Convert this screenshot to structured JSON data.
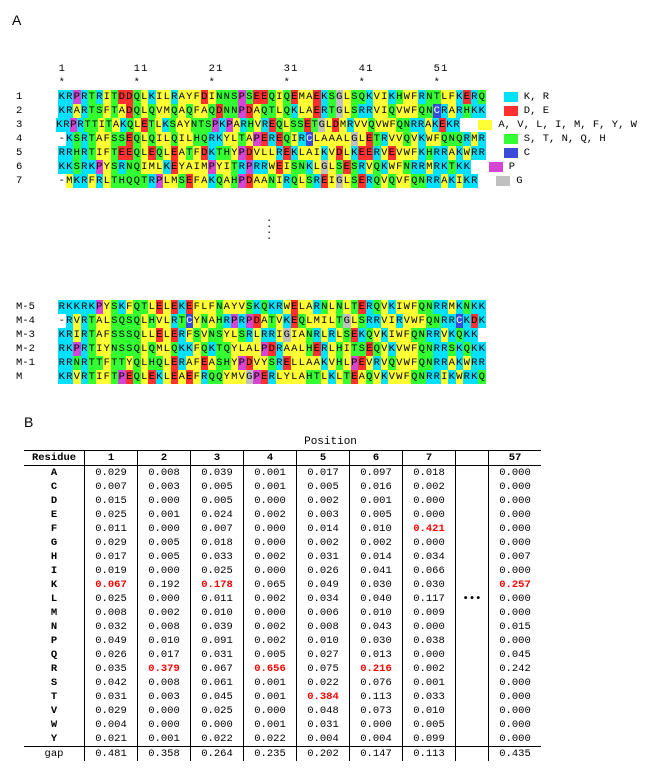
{
  "panelA": {
    "label": "A",
    "ruler_positions": [
      1,
      11,
      21,
      31,
      41,
      51
    ],
    "ruler_marker": "*",
    "color_map": {
      "K": "#00e0ff",
      "R": "#00e0ff",
      "D": "#ff3030",
      "E": "#ff3030",
      "A": "#ffff33",
      "V": "#ffff33",
      "L": "#ffff33",
      "I": "#ffff33",
      "M": "#ffff33",
      "F": "#ffff33",
      "Y": "#ffff33",
      "W": "#ffff33",
      "S": "#33ff33",
      "T": "#33ff33",
      "N": "#33ff33",
      "Q": "#33ff33",
      "H": "#33ff33",
      "C": "#3a4bd8",
      "P": "#d346d3",
      "G": "#c0c0c0",
      "-": "transparent"
    },
    "legend": [
      {
        "color": "#00e0ff",
        "label": "K, R"
      },
      {
        "color": "#ff3030",
        "label": "D, E"
      },
      {
        "color": "#ffff33",
        "label": "A, V, L, I, M, F, Y, W"
      },
      {
        "color": "#33ff33",
        "label": "S, T, N, Q, H"
      },
      {
        "color": "#3a4bd8",
        "label": "C"
      },
      {
        "color": "#d346d3",
        "label": "P"
      },
      {
        "color": "#c0c0c0",
        "label": "G"
      }
    ],
    "block1": {
      "labels": [
        "1",
        "2",
        "3",
        "4",
        "5",
        "6",
        "7"
      ],
      "sequences": [
        "KRPRTRITDDQLKILRAYFDINNSPSEEQIQEMAEKSGLSQKVIKHWFRNTLFKERQ",
        "KRARTSFTADQLQVMQAQFAQDNNPDAQTLQKLAERTGLSRRVIQVWFQNCRARHKK",
        "KRPRTTITAKQLETLKSAYNTSPKPARHVREQLSSETGLDMRVVQVWFQNRRAKEKR",
        "-KSRTAFSSEQLQILQILHQRKYLTAPEREQIRCLAAALGLETRVVQVKWFQNQRMR",
        "RRHRTIFTEEQLEQLEATFDKTHYPDVLLREKLAIKVDLKEERVEVWFKHRRAKWRR",
        "KKSRKPYSRNQIMLKEYAIMPYITRPRRWEISNKLGLSESRVQKWFNRRMRKTKK",
        "-MKRFRLTHQQTRPLMSEFAKQAHPDAANIRQLSREIGLSERQVQVFQNRRAKIKR"
      ]
    },
    "block2": {
      "labels": [
        "M-5",
        "M-4",
        "M-3",
        "M-2",
        "M-1",
        "M"
      ],
      "sequences": [
        "RKKRKPYSKFQTLELEKEFLFNAYVSKQKRWELARNLNLTERQVKIWFQNRRMKNKK",
        "-RVRTALSQSQLHVLRTCYNAHRPRPDATVKEQLMILTGLSRRVIRVWFQNRRCKDK",
        "KRIRTAFSSSQLLELERFSVNSYLSRLRRIGIANRLRLSEKQVKIWFQNRRVKQKK",
        "RKPRTIYNSSQLQMLQKKFQKTQYLALPDRAALHERLHITSEQVKVWFQNRRSKQKK",
        "RRNRTTFTTYQLHQLERAFEASHYPDVYSRELLAAKVHLPEVRVQVWFQNRRAKWRR",
        "KRVRTIFTPEQLEKLEAEFRQQYMVGPERLYLAHTLKLTEAQVKVWFQNRRIKWRKQ"
      ]
    }
  },
  "panelB": {
    "label": "B",
    "title": "Position",
    "row_header_title": "Residue",
    "columns": [
      "1",
      "2",
      "3",
      "4",
      "5",
      "6",
      "7",
      "57"
    ],
    "ellipsis_row_index": 9,
    "residues": [
      "A",
      "C",
      "D",
      "E",
      "F",
      "G",
      "H",
      "I",
      "K",
      "L",
      "M",
      "N",
      "P",
      "Q",
      "R",
      "S",
      "T",
      "V",
      "W",
      "Y",
      "gap"
    ],
    "values": [
      [
        0.029,
        0.008,
        0.039,
        0.001,
        0.017,
        0.097,
        0.018,
        0.0
      ],
      [
        0.007,
        0.003,
        0.005,
        0.001,
        0.005,
        0.016,
        0.002,
        0.0
      ],
      [
        0.015,
        0.0,
        0.005,
        0.0,
        0.002,
        0.001,
        0.0,
        0.0
      ],
      [
        0.025,
        0.001,
        0.024,
        0.002,
        0.003,
        0.005,
        0.0,
        0.0
      ],
      [
        0.011,
        0.0,
        0.007,
        0.0,
        0.014,
        0.01,
        0.421,
        0.0
      ],
      [
        0.029,
        0.005,
        0.018,
        0.0,
        0.002,
        0.002,
        0.0,
        0.0
      ],
      [
        0.017,
        0.005,
        0.033,
        0.002,
        0.031,
        0.014,
        0.034,
        0.007
      ],
      [
        0.019,
        0.0,
        0.025,
        0.0,
        0.026,
        0.041,
        0.066,
        0.0
      ],
      [
        0.067,
        0.192,
        0.178,
        0.065,
        0.049,
        0.03,
        0.03,
        0.257
      ],
      [
        0.025,
        0.0,
        0.011,
        0.002,
        0.034,
        0.04,
        0.117,
        0.0
      ],
      [
        0.008,
        0.002,
        0.01,
        0.0,
        0.006,
        0.01,
        0.009,
        0.0
      ],
      [
        0.032,
        0.008,
        0.039,
        0.002,
        0.008,
        0.043,
        0.0,
        0.015
      ],
      [
        0.049,
        0.01,
        0.091,
        0.002,
        0.01,
        0.03,
        0.038,
        0.0
      ],
      [
        0.026,
        0.017,
        0.031,
        0.005,
        0.027,
        0.013,
        0.0,
        0.045
      ],
      [
        0.035,
        0.379,
        0.067,
        0.656,
        0.075,
        0.216,
        0.002,
        0.242
      ],
      [
        0.042,
        0.008,
        0.061,
        0.001,
        0.022,
        0.076,
        0.001,
        0.0
      ],
      [
        0.031,
        0.003,
        0.045,
        0.001,
        0.384,
        0.113,
        0.033,
        0.0
      ],
      [
        0.029,
        0.0,
        0.025,
        0.0,
        0.048,
        0.073,
        0.01,
        0.0
      ],
      [
        0.004,
        0.0,
        0.0,
        0.001,
        0.031,
        0.0,
        0.005,
        0.0
      ],
      [
        0.021,
        0.001,
        0.022,
        0.022,
        0.004,
        0.004,
        0.099,
        0.0
      ],
      [
        0.481,
        0.358,
        0.264,
        0.235,
        0.202,
        0.147,
        0.113,
        0.435
      ]
    ],
    "highlights": [
      [
        4,
        6
      ],
      [
        8,
        0
      ],
      [
        8,
        2
      ],
      [
        8,
        7
      ],
      [
        14,
        1
      ],
      [
        14,
        3
      ],
      [
        14,
        5
      ],
      [
        16,
        4
      ]
    ]
  }
}
